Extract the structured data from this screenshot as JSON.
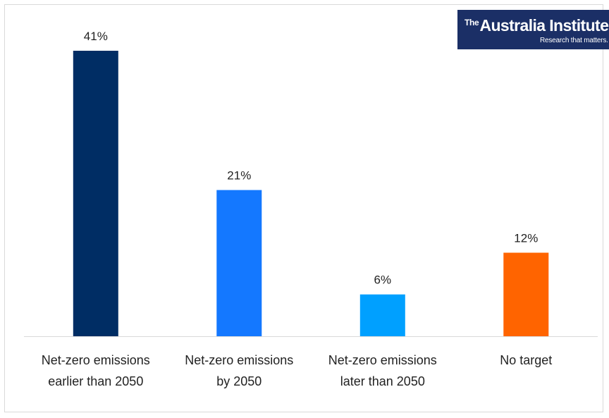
{
  "chart_data": {
    "type": "bar",
    "categories": [
      [
        "Net-zero emissions",
        "earlier than 2050"
      ],
      [
        "Net-zero emissions",
        "by 2050"
      ],
      [
        "Net-zero emissions",
        "later than 2050"
      ],
      [
        "No target"
      ]
    ],
    "values": [
      41,
      21,
      6,
      12
    ],
    "data_labels": [
      "41%",
      "21%",
      "6%",
      "12%"
    ],
    "colors": [
      "#002d64",
      "#1478ff",
      "#00a0ff",
      "#ff6400"
    ],
    "ylim": [
      0,
      41
    ],
    "grid": false,
    "title": "",
    "xlabel": "",
    "ylabel": ""
  },
  "logo": {
    "the": "The",
    "name": "Australia Institute",
    "tagline": "Research that matters."
  }
}
